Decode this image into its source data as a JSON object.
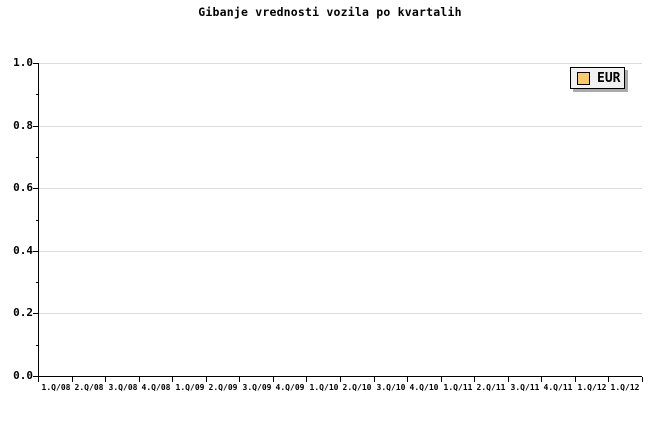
{
  "title": "Gibanje vrednosti vozila po kvartalih",
  "legend": {
    "label": "EUR",
    "position": "top-right"
  },
  "colors": {
    "series_eur_swatch": "#FBC96B",
    "gridline": "#DDDDDD",
    "axis": "#000000",
    "text": "#000000",
    "legend_background": "#F1F1F1",
    "legend_border": "#000000",
    "legend_shadow": "#AAAAAA",
    "page_background": "#FFFFFF"
  },
  "y_axis": {
    "tick_labels": [
      "1.0",
      "0.8",
      "0.6",
      "0.4",
      "0.2",
      "0.0"
    ],
    "range": [
      0.0,
      1.0
    ],
    "major_tick_interval": 0.2,
    "minor_tick_interval": 0.1
  },
  "x_axis": {
    "tick_labels": [
      "1.Q/08",
      "2.Q/08",
      "3.Q/08",
      "4.Q/08",
      "1.Q/09",
      "2.Q/09",
      "3.Q/09",
      "4.Q/09",
      "1.Q/10",
      "2.Q/10",
      "3.Q/10",
      "4.Q/10",
      "1.Q/11",
      "2.Q/11",
      "3.Q/11",
      "4.Q/11",
      "1.Q/12",
      "1.Q/12"
    ]
  },
  "chart_data": {
    "type": "line",
    "title": "Gibanje vrednosti vozila po kvartalih",
    "categories": [
      "1.Q/08",
      "2.Q/08",
      "3.Q/08",
      "4.Q/08",
      "1.Q/09",
      "2.Q/09",
      "3.Q/09",
      "4.Q/09",
      "1.Q/10",
      "2.Q/10",
      "3.Q/10",
      "4.Q/10",
      "1.Q/11",
      "2.Q/11",
      "3.Q/11",
      "4.Q/11",
      "1.Q/12",
      "1.Q/12"
    ],
    "series": [
      {
        "name": "EUR",
        "color": "#FBC96B",
        "values": []
      }
    ],
    "ylim": [
      0.0,
      1.0
    ],
    "yticks": [
      0.0,
      0.2,
      0.4,
      0.6,
      0.8,
      1.0
    ],
    "y_minor_ticks": [
      0.1,
      0.3,
      0.5,
      0.7,
      0.9
    ],
    "grid": "horizontal",
    "legend_position": "top-right",
    "plot_is_empty": true
  }
}
